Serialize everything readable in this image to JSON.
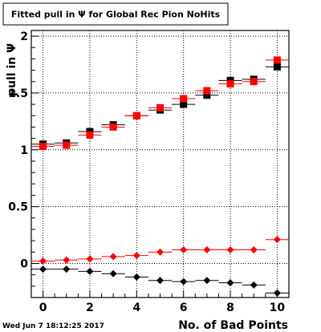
{
  "title": "Fitted pull in  Ψ  for Global Rec Pion NoHits",
  "timestamp": "Wed Jun  7 18:12:25 2017",
  "colors": {
    "series_black": "#000000",
    "series_red": "#ff0000",
    "grid": "#000000",
    "background": "#ffffff"
  },
  "chart_data": {
    "type": "scatter",
    "title": "Fitted pull in  Ψ  for Global Rec Pion NoHits",
    "xlabel": "No. of Bad Points",
    "ylabel": "pull in  Ψ",
    "xlim": [
      -0.5,
      10.5
    ],
    "ylim": [
      -0.3,
      2.05
    ],
    "grid": true,
    "x_ticks": [
      0,
      2,
      4,
      6,
      8,
      10
    ],
    "x_tick_labels": [
      "0",
      "2",
      "4",
      "6",
      "8",
      "10"
    ],
    "y_ticks": [
      0,
      0.5,
      1,
      1.5,
      2
    ],
    "y_tick_labels": [
      "0",
      "0.5",
      "1",
      "1.5",
      "2"
    ],
    "x": [
      0,
      1,
      2,
      3,
      4,
      5,
      6,
      7,
      8,
      9,
      10
    ],
    "series": [
      {
        "color": "#000000",
        "marker": "square",
        "values": [
          1.05,
          1.06,
          1.16,
          1.22,
          1.3,
          1.35,
          1.4,
          1.48,
          1.61,
          1.62,
          1.73
        ],
        "errors": [
          0.02,
          0.02,
          0.02,
          0.02,
          0.02,
          0.02,
          0.02,
          0.02,
          0.02,
          0.02,
          0.02
        ]
      },
      {
        "color": "#ff0000",
        "marker": "square",
        "values": [
          1.03,
          1.04,
          1.13,
          1.2,
          1.3,
          1.37,
          1.45,
          1.52,
          1.58,
          1.6,
          1.79
        ],
        "errors": [
          0.02,
          0.02,
          0.02,
          0.02,
          0.02,
          0.02,
          0.02,
          0.02,
          0.02,
          0.02,
          0.02
        ]
      },
      {
        "color": "#ff0000",
        "marker": "diamond",
        "values": [
          0.02,
          0.03,
          0.04,
          0.06,
          0.07,
          0.1,
          0.12,
          0.12,
          0.12,
          0.12,
          0.21
        ],
        "errors": [
          0,
          0,
          0,
          0,
          0,
          0,
          0,
          0,
          0,
          0,
          0
        ]
      },
      {
        "color": "#000000",
        "marker": "diamond",
        "values": [
          -0.05,
          -0.05,
          -0.07,
          -0.09,
          -0.12,
          -0.15,
          -0.16,
          -0.15,
          -0.17,
          -0.19,
          -0.26
        ],
        "errors": [
          0,
          0,
          0,
          0,
          0,
          0,
          0,
          0,
          0,
          0,
          0
        ]
      }
    ]
  }
}
